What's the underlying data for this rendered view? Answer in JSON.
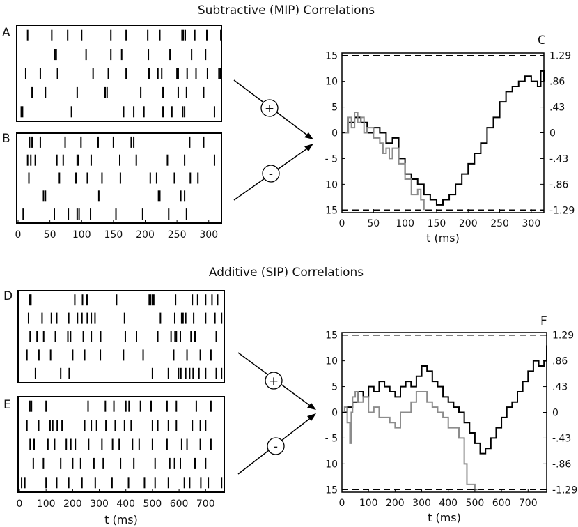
{
  "titles": {
    "top": "Subtractive (MIP) Correlations",
    "bottom": "Additive (SIP) Correlations"
  },
  "panel_labels": [
    "A",
    "B",
    "C",
    "D",
    "E",
    "F"
  ],
  "arrow_symbols": {
    "plus": "+",
    "minus": "-"
  },
  "colors": {
    "line_primary": "#000000",
    "line_secondary": "#8c8c8c",
    "frame": "#000000"
  },
  "chart_data": [
    {
      "panel": "A",
      "type": "raster",
      "xlim": [
        0,
        320
      ],
      "rows": [
        [
          15,
          53,
          78,
          100,
          146,
          170,
          204,
          223,
          258,
          260,
          263,
          278,
          297,
          319
        ],
        [
          58,
          60,
          107,
          146,
          163,
          205,
          239,
          273,
          295
        ],
        [
          12,
          35,
          62,
          118,
          142,
          170,
          206,
          220,
          226,
          250,
          252,
          266,
          280,
          298,
          316,
          318
        ],
        [
          22,
          43,
          93,
          137,
          140,
          193,
          228,
          252,
          265,
          292
        ],
        [
          5,
          7,
          84,
          166,
          182,
          198,
          228,
          242,
          259,
          262,
          309
        ]
      ]
    },
    {
      "panel": "B",
      "type": "raster",
      "xlim": [
        0,
        320
      ],
      "rows": [
        [
          18,
          22,
          35,
          74,
          99,
          126,
          150,
          178,
          182,
          270,
          292
        ],
        [
          15,
          20,
          27,
          61,
          71,
          93,
          95,
          115,
          160,
          186,
          235,
          262,
          309
        ],
        [
          17,
          65,
          91,
          109,
          132,
          161,
          208,
          218,
          246,
          271,
          283
        ],
        [
          40,
          43,
          127,
          221,
          223,
          256,
          262
        ],
        [
          8,
          57,
          79,
          93,
          96,
          114,
          154,
          196,
          237,
          265
        ]
      ],
      "x_ticks": [
        0,
        50,
        100,
        150,
        200,
        250,
        300
      ]
    },
    {
      "panel": "C",
      "type": "line",
      "xlim": [
        0,
        320
      ],
      "ylim": [
        -15.5,
        15.5
      ],
      "x_ticks": [
        0,
        50,
        100,
        150,
        200,
        250,
        300
      ],
      "y_ticks": [
        15,
        10,
        5,
        0,
        -5,
        -10,
        -15
      ],
      "y_tick_labels": [
        "15",
        "10",
        "5",
        "0",
        "- 5",
        "10",
        "15"
      ],
      "y2_ticks": [
        15,
        10,
        5,
        0,
        -5,
        -10,
        -15
      ],
      "y2_tick_labels": [
        "1.29",
        ".86",
        ".43",
        "0",
        "-.43",
        "-.86",
        "-1.29"
      ],
      "xlabel": "t (ms)",
      "thresholds": [
        15,
        -15
      ],
      "series": [
        {
          "x": [
            0,
            10,
            15,
            20,
            25,
            30,
            35,
            40,
            50,
            60,
            65,
            70,
            75,
            80,
            90,
            100,
            110,
            120,
            125,
            130
          ],
          "y": [
            0,
            3,
            1,
            4,
            2,
            3,
            0,
            1,
            -1,
            -2,
            -4,
            -3,
            -5,
            -3,
            -6,
            -9,
            -12,
            -11,
            -13,
            -15
          ]
        },
        {
          "x": [
            0,
            10,
            20,
            30,
            40,
            50,
            60,
            70,
            80,
            90,
            100,
            110,
            120,
            130,
            140,
            150,
            160,
            170,
            180,
            190,
            200,
            210,
            220,
            230,
            240,
            250,
            260,
            270,
            280,
            290,
            300,
            310,
            315,
            320
          ],
          "y": [
            0,
            2,
            3,
            2,
            0,
            1,
            0,
            -2,
            -1,
            -5,
            -8,
            -9,
            -10,
            -12,
            -13,
            -14,
            -13,
            -12,
            -10,
            -8,
            -6,
            -4,
            -2,
            1,
            3,
            6,
            8,
            9,
            10,
            11,
            10,
            9,
            12,
            10
          ]
        }
      ]
    },
    {
      "panel": "D",
      "type": "raster",
      "xlim": [
        0,
        770
      ],
      "rows": [
        [
          39,
          43,
          208,
          237,
          254,
          365,
          488,
          493,
          500,
          505,
          587,
          650,
          670,
          700,
          724,
          745
        ],
        [
          34,
          85,
          120,
          140,
          185,
          218,
          235,
          255,
          270,
          284,
          395,
          530,
          584,
          610,
          615,
          625,
          655,
          700,
          735,
          760
        ],
        [
          40,
          66,
          91,
          135,
          182,
          192,
          240,
          270,
          305,
          398,
          440,
          520,
          570,
          585,
          590,
          605,
          645,
          660,
          740
        ],
        [
          28,
          73,
          117,
          200,
          245,
          304,
          391,
          465,
          580,
          630,
          680,
          720
        ],
        [
          60,
          155,
          187,
          500,
          560,
          598,
          607,
          625,
          640,
          653,
          675,
          700,
          740,
          760
        ]
      ]
    },
    {
      "panel": "E",
      "type": "raster",
      "xlim": [
        0,
        770
      ],
      "rows": [
        [
          39,
          45,
          100,
          258,
          323,
          355,
          400,
          412,
          455,
          495,
          555,
          590,
          665,
          720
        ],
        [
          28,
          72,
          115,
          125,
          142,
          160,
          245,
          270,
          290,
          325,
          360,
          395,
          420,
          500,
          520,
          560,
          590,
          650,
          680,
          700
        ],
        [
          40,
          55,
          107,
          132,
          176,
          193,
          210,
          260,
          310,
          350,
          375,
          425,
          450,
          500,
          555,
          610,
          630,
          680,
          720
        ],
        [
          52,
          90,
          155,
          200,
          230,
          280,
          315,
          380,
          430,
          510,
          565,
          583,
          605,
          660,
          700
        ],
        [
          8,
          20,
          100,
          140,
          185,
          235,
          285,
          348,
          410,
          470,
          510,
          560,
          620,
          640,
          682,
          710,
          760
        ]
      ],
      "x_ticks": [
        0,
        100,
        200,
        300,
        400,
        500,
        600,
        700
      ],
      "xlabel": "t (ms)"
    },
    {
      "panel": "F",
      "type": "line",
      "xlim": [
        0,
        770
      ],
      "ylim": [
        -15.5,
        15.5
      ],
      "x_ticks": [
        0,
        100,
        200,
        300,
        400,
        500,
        600,
        700
      ],
      "y_ticks": [
        15,
        10,
        5,
        0,
        -5,
        -10,
        -15
      ],
      "y_tick_labels": [
        "15",
        "10",
        "5",
        "0",
        "- 5",
        "10",
        "15"
      ],
      "y2_ticks": [
        15,
        10,
        5,
        0,
        -5,
        -10,
        -15
      ],
      "y2_tick_labels": [
        "1.29",
        ".86",
        ".43",
        "0",
        "-.43",
        "-.86",
        "-1.29"
      ],
      "xlabel": "t (ms)",
      "thresholds": [
        15,
        -15
      ],
      "series": [
        {
          "x": [
            0,
            10,
            20,
            30,
            35,
            40,
            50,
            60,
            80,
            100,
            120,
            140,
            160,
            180,
            200,
            220,
            240,
            260,
            280,
            300,
            320,
            340,
            360,
            380,
            400,
            420,
            440,
            460,
            470,
            480,
            500,
            510
          ],
          "y": [
            0,
            1,
            -2,
            -6,
            0,
            3,
            4,
            2,
            3,
            0,
            1,
            -1,
            -1,
            -2,
            -3,
            0,
            0,
            2,
            4,
            4,
            2,
            1,
            0,
            -1,
            -3,
            -3,
            -5,
            -10,
            -14,
            -14,
            -15,
            -15
          ]
        },
        {
          "x": [
            0,
            20,
            40,
            60,
            80,
            100,
            120,
            140,
            160,
            180,
            200,
            220,
            240,
            260,
            280,
            300,
            320,
            340,
            360,
            380,
            400,
            420,
            440,
            460,
            480,
            500,
            520,
            540,
            560,
            580,
            600,
            620,
            640,
            660,
            680,
            700,
            720,
            740,
            760,
            770
          ],
          "y": [
            0,
            1,
            2,
            4,
            3,
            5,
            4,
            6,
            5,
            4,
            3,
            5,
            6,
            5,
            7,
            9,
            8,
            6,
            5,
            3,
            2,
            1,
            0,
            -2,
            -4,
            -6,
            -8,
            -7,
            -5,
            -3,
            -1,
            1,
            2,
            4,
            6,
            8,
            10,
            9,
            10,
            13
          ]
        }
      ]
    }
  ]
}
